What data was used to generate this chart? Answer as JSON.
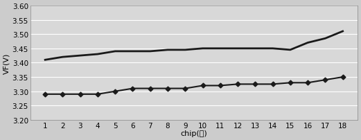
{
  "chips": [
    1,
    2,
    3,
    4,
    5,
    6,
    7,
    8,
    9,
    10,
    11,
    12,
    13,
    14,
    15,
    16,
    17,
    18
  ],
  "series1": [
    3.41,
    3.42,
    3.425,
    3.43,
    3.44,
    3.44,
    3.44,
    3.445,
    3.445,
    3.45,
    3.45,
    3.45,
    3.45,
    3.45,
    3.445,
    3.47,
    3.485,
    3.51
  ],
  "series2": [
    3.29,
    3.29,
    3.29,
    3.29,
    3.3,
    3.31,
    3.31,
    3.31,
    3.31,
    3.32,
    3.32,
    3.325,
    3.325,
    3.325,
    3.33,
    3.33,
    3.34,
    3.35
  ],
  "ylabel": "VF(V)",
  "xlabel_prefix": "chip(",
  "xlabel_suffix": ")",
  "ylim": [
    3.2,
    3.6
  ],
  "yticks": [
    3.2,
    3.25,
    3.3,
    3.35,
    3.4,
    3.45,
    3.5,
    3.55,
    3.6
  ],
  "line_color": "#1a1a1a",
  "marker_color": "#1a1a1a",
  "bg_color": "#cccccc",
  "plot_bg_color": "#d8d8d8",
  "grid_color": "#ffffff"
}
